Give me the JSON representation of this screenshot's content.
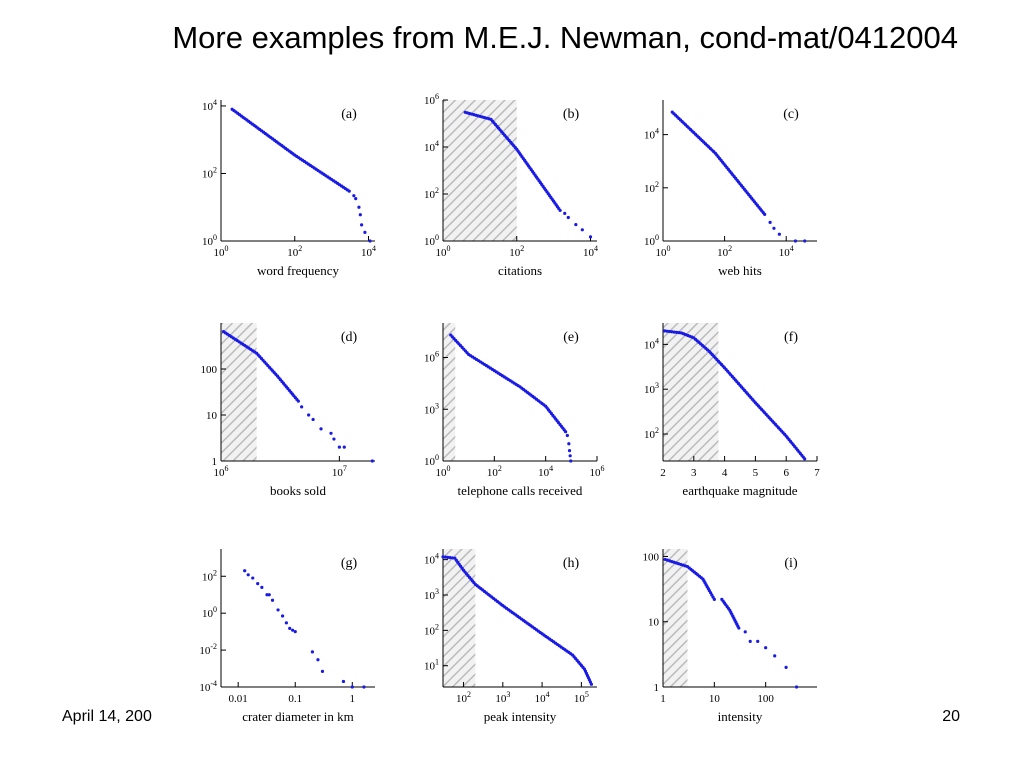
{
  "slide": {
    "title": "More examples from M.E.J. Newman, cond-mat/0412004",
    "footer_date": "April 14, 200",
    "page_number": "20"
  },
  "colors": {
    "points": "#1a1ae6",
    "hatch": "#bbbbbb"
  },
  "chart_data": [
    {
      "type": "scatter",
      "panel": "(a)",
      "xlabel": "word frequency",
      "log_x": true,
      "log_y": true,
      "xlim": [
        1,
        15000
      ],
      "ylim": [
        1,
        15000
      ],
      "xticks": [
        {
          "v": 1,
          "b": "10",
          "e": "0"
        },
        {
          "v": 100,
          "b": "10",
          "e": "2"
        },
        {
          "v": 10000,
          "b": "10",
          "e": "4"
        }
      ],
      "yticks": [
        {
          "v": 1,
          "b": "10",
          "e": "0"
        },
        {
          "v": 100,
          "b": "10",
          "e": "2"
        },
        {
          "v": 10000,
          "b": "10",
          "e": "4"
        }
      ],
      "shade": null,
      "segments": [
        [
          [
            2,
            8000
          ],
          [
            100,
            350
          ],
          [
            3000,
            30
          ]
        ]
      ],
      "points": [
        [
          4000,
          22
        ],
        [
          4500,
          18
        ],
        [
          5500,
          10
        ],
        [
          6000,
          6
        ],
        [
          6500,
          3
        ],
        [
          8000,
          1.8
        ],
        [
          11000,
          1
        ]
      ]
    },
    {
      "type": "scatter",
      "panel": "(b)",
      "xlabel": "citations",
      "log_x": true,
      "log_y": true,
      "xlim": [
        1,
        15000
      ],
      "ylim": [
        1,
        1000000
      ],
      "xticks": [
        {
          "v": 1,
          "b": "10",
          "e": "0"
        },
        {
          "v": 100,
          "b": "10",
          "e": "2"
        },
        {
          "v": 10000,
          "b": "10",
          "e": "4"
        }
      ],
      "yticks": [
        {
          "v": 1,
          "b": "10",
          "e": "0"
        },
        {
          "v": 100,
          "b": "10",
          "e": "2"
        },
        {
          "v": 10000,
          "b": "10",
          "e": "4"
        },
        {
          "v": 1000000,
          "b": "10",
          "e": "6"
        }
      ],
      "shade": [
        1,
        100
      ],
      "segments": [
        [
          [
            4,
            300000
          ],
          [
            20,
            150000
          ],
          [
            100,
            8000
          ],
          [
            1500,
            20
          ]
        ]
      ],
      "points": [
        [
          2000,
          15
        ],
        [
          2500,
          10
        ],
        [
          4000,
          5
        ],
        [
          6000,
          3
        ],
        [
          10000,
          1.5
        ]
      ]
    },
    {
      "type": "scatter",
      "panel": "(c)",
      "xlabel": "web hits",
      "log_x": true,
      "log_y": true,
      "xlim": [
        1,
        100000
      ],
      "ylim": [
        1,
        200000
      ],
      "xticks": [
        {
          "v": 1,
          "b": "10",
          "e": "0"
        },
        {
          "v": 100,
          "b": "10",
          "e": "2"
        },
        {
          "v": 10000,
          "b": "10",
          "e": "4"
        }
      ],
      "yticks": [
        {
          "v": 1,
          "b": "10",
          "e": "0"
        },
        {
          "v": 100,
          "b": "10",
          "e": "2"
        },
        {
          "v": 10000,
          "b": "10",
          "e": "4"
        }
      ],
      "shade": null,
      "segments": [
        [
          [
            2,
            70000
          ],
          [
            50,
            2000
          ],
          [
            2000,
            10
          ]
        ]
      ],
      "points": [
        [
          3000,
          5
        ],
        [
          4000,
          3
        ],
        [
          6000,
          1.8
        ],
        [
          20000,
          1
        ],
        [
          40000,
          1
        ]
      ]
    },
    {
      "type": "scatter",
      "panel": "(d)",
      "xlabel": "books sold",
      "log_x": true,
      "log_y": true,
      "xlim": [
        1000000,
        20000000
      ],
      "ylim": [
        1,
        1000
      ],
      "xticks": [
        {
          "v": 1000000,
          "b": "10",
          "e": "6"
        },
        {
          "v": 10000000,
          "b": "10",
          "e": "7"
        }
      ],
      "yticks": [
        {
          "v": 1,
          "b": "1",
          "e": ""
        },
        {
          "v": 10,
          "b": "10",
          "e": ""
        },
        {
          "v": 100,
          "b": "100",
          "e": ""
        }
      ],
      "shade": [
        1000000,
        2000000
      ],
      "segments": [
        [
          [
            1050000,
            650
          ],
          [
            2000000,
            220
          ],
          [
            3000000,
            70
          ],
          [
            4500000,
            20
          ]
        ]
      ],
      "points": [
        [
          4800000,
          15
        ],
        [
          5500000,
          10
        ],
        [
          6000000,
          8
        ],
        [
          7000000,
          5
        ],
        [
          8500000,
          4
        ],
        [
          9000000,
          3
        ],
        [
          10000000,
          2
        ],
        [
          11000000,
          2
        ],
        [
          19000000,
          1
        ]
      ]
    },
    {
      "type": "scatter",
      "panel": "(e)",
      "xlabel": "telephone calls received",
      "log_x": true,
      "log_y": true,
      "xlim": [
        1,
        1000000
      ],
      "ylim": [
        1,
        100000000
      ],
      "xticks": [
        {
          "v": 1,
          "b": "10",
          "e": "0"
        },
        {
          "v": 100,
          "b": "10",
          "e": "2"
        },
        {
          "v": 10000,
          "b": "10",
          "e": "4"
        },
        {
          "v": 1000000,
          "b": "10",
          "e": "6"
        }
      ],
      "yticks": [
        {
          "v": 1,
          "b": "10",
          "e": "0"
        },
        {
          "v": 1000,
          "b": "10",
          "e": "3"
        },
        {
          "v": 1000000,
          "b": "10",
          "e": "6"
        }
      ],
      "shade": [
        1,
        3
      ],
      "segments": [
        [
          [
            2,
            20000000
          ],
          [
            10,
            1500000
          ],
          [
            1000,
            20000
          ],
          [
            10000,
            1500
          ],
          [
            60000,
            50
          ]
        ]
      ],
      "points": [
        [
          70000,
          30
        ],
        [
          80000,
          10
        ],
        [
          85000,
          4
        ],
        [
          90000,
          2
        ],
        [
          95000,
          1
        ]
      ]
    },
    {
      "type": "scatter",
      "panel": "(f)",
      "xlabel": "earthquake magnitude",
      "log_x": false,
      "log_y": true,
      "xlim": [
        2,
        7
      ],
      "ylim": [
        25,
        30000
      ],
      "xticks": [
        {
          "v": 2,
          "b": "2",
          "e": ""
        },
        {
          "v": 3,
          "b": "3",
          "e": ""
        },
        {
          "v": 4,
          "b": "4",
          "e": ""
        },
        {
          "v": 5,
          "b": "5",
          "e": ""
        },
        {
          "v": 6,
          "b": "6",
          "e": ""
        },
        {
          "v": 7,
          "b": "7",
          "e": ""
        }
      ],
      "yticks": [
        {
          "v": 100,
          "b": "10",
          "e": "2"
        },
        {
          "v": 1000,
          "b": "10",
          "e": "3"
        },
        {
          "v": 10000,
          "b": "10",
          "e": "4"
        }
      ],
      "shade": [
        2,
        3.8
      ],
      "segments": [
        [
          [
            2.05,
            20000
          ],
          [
            2.6,
            18000
          ],
          [
            3.0,
            14000
          ],
          [
            3.5,
            7000
          ],
          [
            4.0,
            3000
          ],
          [
            5.0,
            500
          ],
          [
            6.0,
            90
          ],
          [
            6.6,
            28
          ]
        ]
      ],
      "points": []
    },
    {
      "type": "scatter",
      "panel": "(g)",
      "xlabel": "crater diameter in km",
      "log_x": true,
      "log_y": true,
      "xlim": [
        0.005,
        2.5
      ],
      "ylim": [
        0.0001,
        3000
      ],
      "xticks": [
        {
          "v": 0.01,
          "b": "0.01",
          "e": ""
        },
        {
          "v": 0.1,
          "b": "0.1",
          "e": ""
        },
        {
          "v": 1,
          "b": "1",
          "e": ""
        }
      ],
      "yticks": [
        {
          "v": 0.0001,
          "b": "10",
          "e": "-4"
        },
        {
          "v": 0.01,
          "b": "10",
          "e": "-2"
        },
        {
          "v": 1,
          "b": "10",
          "e": "0"
        },
        {
          "v": 100,
          "b": "10",
          "e": "2"
        }
      ],
      "shade": null,
      "segments": [],
      "points": [
        [
          0.013,
          200
        ],
        [
          0.015,
          120
        ],
        [
          0.018,
          80
        ],
        [
          0.022,
          40
        ],
        [
          0.026,
          25
        ],
        [
          0.032,
          10
        ],
        [
          0.035,
          10
        ],
        [
          0.04,
          5
        ],
        [
          0.05,
          1.5
        ],
        [
          0.06,
          0.7
        ],
        [
          0.07,
          0.3
        ],
        [
          0.08,
          0.15
        ],
        [
          0.09,
          0.12
        ],
        [
          0.1,
          0.1
        ],
        [
          0.2,
          0.008
        ],
        [
          0.25,
          0.003
        ],
        [
          0.3,
          0.0007
        ],
        [
          0.7,
          0.0002
        ],
        [
          1.0,
          0.0001
        ],
        [
          1.6,
          0.0001
        ]
      ]
    },
    {
      "type": "scatter",
      "panel": "(h)",
      "xlabel": "peak intensity",
      "log_x": true,
      "log_y": true,
      "xlim": [
        30,
        250000
      ],
      "ylim": [
        2.5,
        20000
      ],
      "xticks": [
        {
          "v": 100,
          "b": "10",
          "e": "2"
        },
        {
          "v": 1000,
          "b": "10",
          "e": "3"
        },
        {
          "v": 10000,
          "b": "10",
          "e": "4"
        },
        {
          "v": 100000,
          "b": "10",
          "e": "5"
        }
      ],
      "yticks": [
        {
          "v": 10,
          "b": "10",
          "e": "1"
        },
        {
          "v": 100,
          "b": "10",
          "e": "2"
        },
        {
          "v": 1000,
          "b": "10",
          "e": "3"
        },
        {
          "v": 10000,
          "b": "10",
          "e": "4"
        }
      ],
      "shade": [
        30,
        200
      ],
      "segments": [
        [
          [
            30,
            12000
          ],
          [
            60,
            11000
          ],
          [
            100,
            5000
          ],
          [
            200,
            2000
          ],
          [
            1000,
            500
          ],
          [
            10000,
            80
          ],
          [
            60000,
            20
          ],
          [
            120000,
            8
          ],
          [
            160000,
            4
          ],
          [
            180000,
            3
          ]
        ]
      ],
      "points": []
    },
    {
      "type": "scatter",
      "panel": "(i)",
      "xlabel": "intensity",
      "log_x": true,
      "log_y": true,
      "xlim": [
        1,
        1000
      ],
      "ylim": [
        1,
        130
      ],
      "xticks": [
        {
          "v": 1,
          "b": "1",
          "e": ""
        },
        {
          "v": 10,
          "b": "10",
          "e": ""
        },
        {
          "v": 100,
          "b": "100",
          "e": ""
        }
      ],
      "yticks": [
        {
          "v": 1,
          "b": "1",
          "e": ""
        },
        {
          "v": 10,
          "b": "10",
          "e": ""
        },
        {
          "v": 100,
          "b": "100",
          "e": ""
        }
      ],
      "shade": [
        1,
        3
      ],
      "segments": [
        [
          [
            1.1,
            90
          ],
          [
            3,
            70
          ],
          [
            6,
            45
          ],
          [
            8,
            30
          ],
          [
            10,
            22
          ]
        ],
        [
          [
            14,
            22
          ],
          [
            20,
            15
          ],
          [
            30,
            8
          ]
        ]
      ],
      "points": [
        [
          40,
          7
        ],
        [
          50,
          5
        ],
        [
          70,
          5
        ],
        [
          100,
          4
        ],
        [
          150,
          3
        ],
        [
          250,
          2
        ],
        [
          400,
          1
        ]
      ]
    }
  ]
}
